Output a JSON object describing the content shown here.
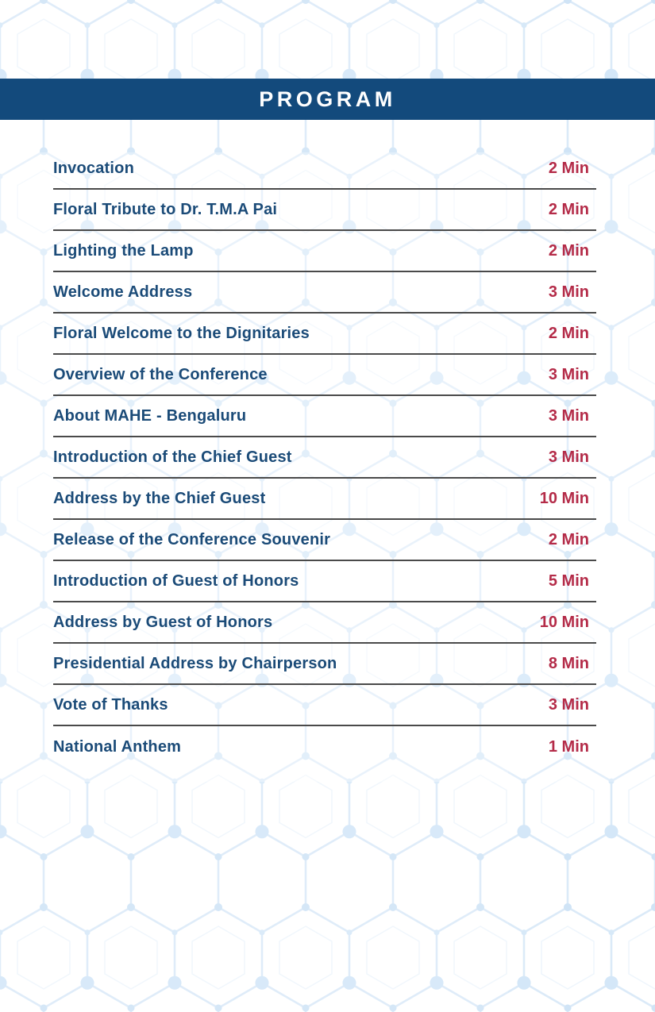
{
  "header": {
    "title": "PROGRAM"
  },
  "program": {
    "items": [
      {
        "label": "Invocation",
        "duration": "2 Min"
      },
      {
        "label": "Floral Tribute to Dr. T.M.A Pai",
        "duration": "2 Min"
      },
      {
        "label": "Lighting the Lamp",
        "duration": "2 Min"
      },
      {
        "label": "Welcome Address",
        "duration": "3 Min"
      },
      {
        "label": "Floral Welcome to the Dignitaries",
        "duration": "2 Min"
      },
      {
        "label": "Overview of the Conference",
        "duration": "3 Min"
      },
      {
        "label": "About MAHE - Bengaluru",
        "duration": "3 Min"
      },
      {
        "label": "Introduction of the Chief Guest",
        "duration": "3 Min"
      },
      {
        "label": "Address by the Chief Guest",
        "duration": "10 Min"
      },
      {
        "label": "Release of the Conference Souvenir",
        "duration": "2 Min"
      },
      {
        "label": "Introduction of Guest of Honors",
        "duration": "5 Min"
      },
      {
        "label": "Address by Guest of Honors",
        "duration": "10 Min"
      },
      {
        "label": "Presidential Address by Chairperson",
        "duration": "8 Min"
      },
      {
        "label": "Vote of Thanks",
        "duration": "3 Min"
      },
      {
        "label": "National Anthem",
        "duration": "1 Min"
      }
    ]
  },
  "colors": {
    "background": "#ffffff",
    "header_bg": "#134a7c",
    "item_text": "#1b4b78",
    "duration_text": "#b42b48",
    "divider": "#4a4a4a",
    "pattern_stroke": "#d3e5f6",
    "pattern_dot": "#c5def4"
  }
}
